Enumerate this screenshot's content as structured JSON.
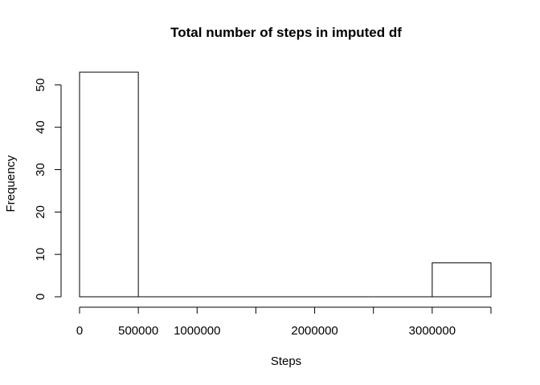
{
  "chart_data": {
    "type": "bar",
    "title": "Total number of steps in imputed df",
    "xlabel": "Steps",
    "ylabel": "Frequency",
    "bins": [
      {
        "start": 0,
        "end": 500000,
        "count": 53
      },
      {
        "start": 500000,
        "end": 1000000,
        "count": 0
      },
      {
        "start": 1000000,
        "end": 1500000,
        "count": 0
      },
      {
        "start": 1500000,
        "end": 2000000,
        "count": 0
      },
      {
        "start": 2000000,
        "end": 2500000,
        "count": 0
      },
      {
        "start": 2500000,
        "end": 3000000,
        "count": 0
      },
      {
        "start": 3000000,
        "end": 3500000,
        "count": 8
      }
    ],
    "xlim": [
      0,
      3500000
    ],
    "ylim": [
      0,
      53
    ],
    "x_ticks": [
      0,
      500000,
      1000000,
      1500000,
      2000000,
      2500000,
      3000000,
      3500000
    ],
    "x_tick_labels": [
      "0",
      "500000",
      "1000000",
      "",
      "2000000",
      "",
      "3000000",
      ""
    ],
    "y_ticks": [
      0,
      10,
      20,
      30,
      40,
      50
    ],
    "y_tick_labels": [
      "0",
      "10",
      "20",
      "30",
      "40",
      "50"
    ],
    "grid": false,
    "legend": "none"
  }
}
